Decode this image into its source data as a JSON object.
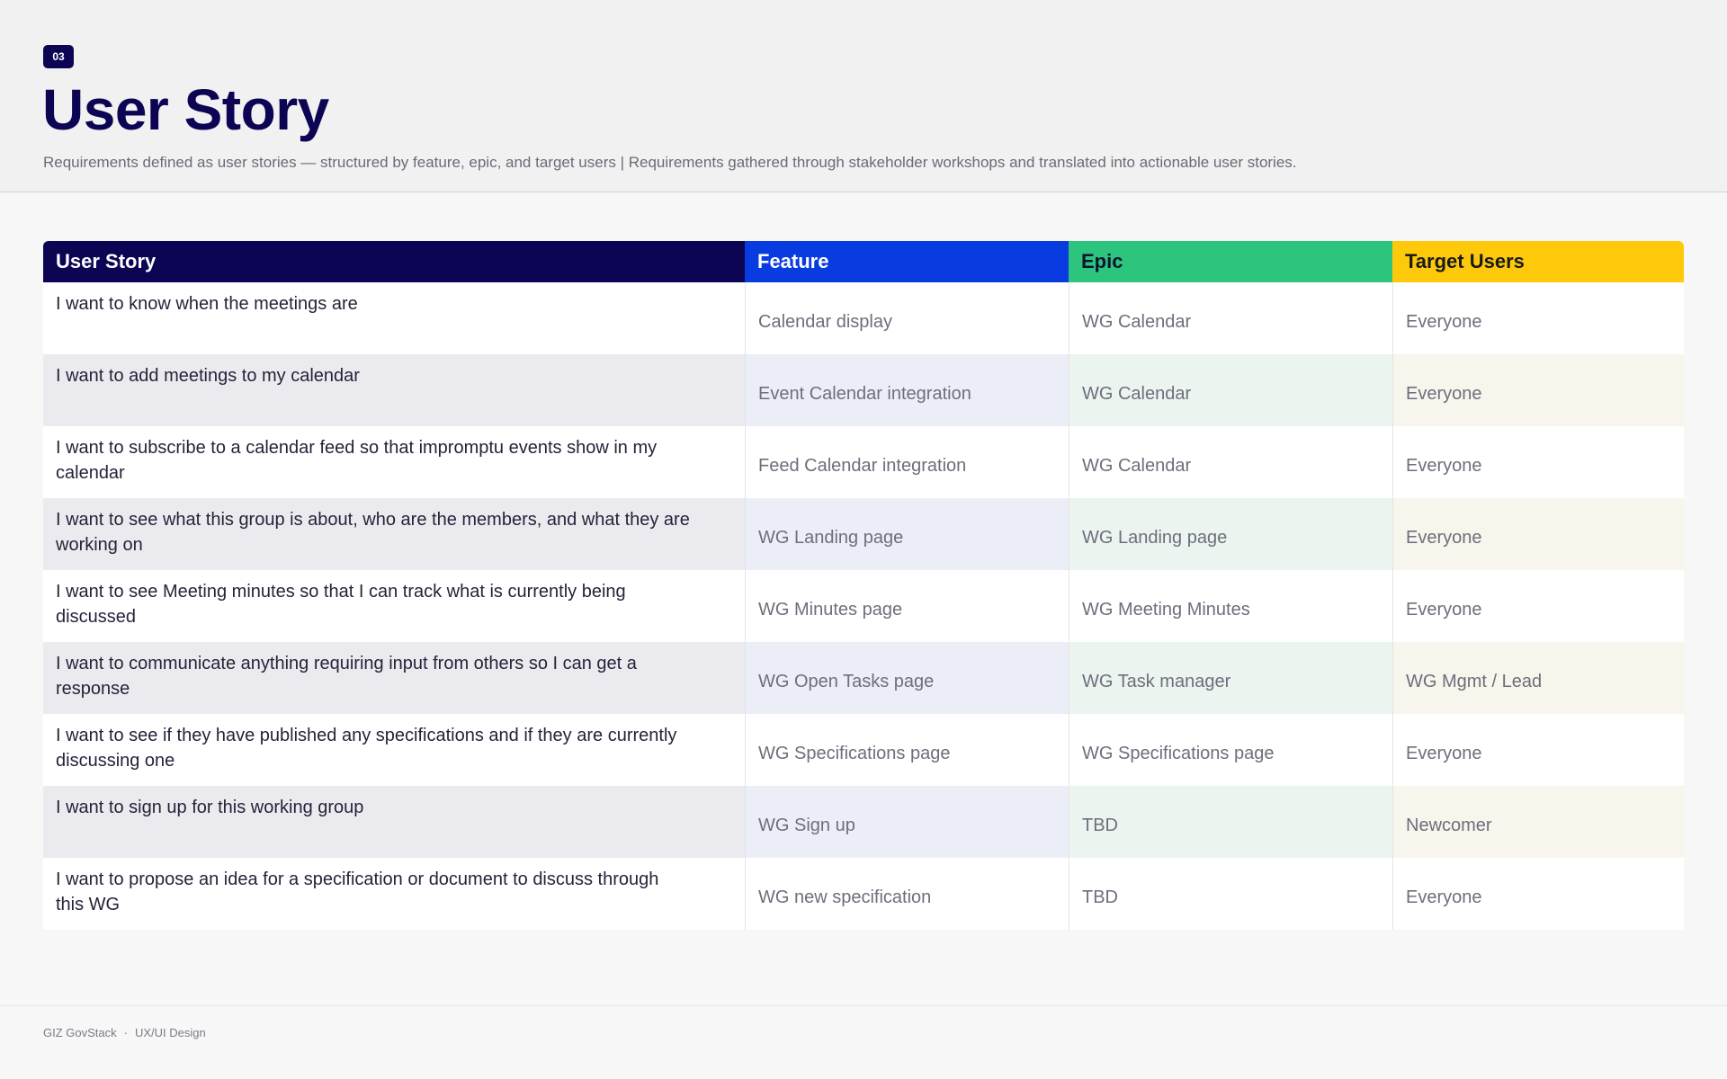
{
  "header": {
    "badge": "03",
    "title": "User Story",
    "subtitle": "Requirements defined as user stories — structured by feature, epic, and target users | Requirements gathered through stakeholder workshops and translated into actionable user stories."
  },
  "table": {
    "columns": [
      "User Story",
      "Feature",
      "Epic",
      "Target Users"
    ],
    "header_colors": [
      "#0b0554",
      "#083ce0",
      "#2dc57e",
      "#fdc90a"
    ],
    "rows": [
      {
        "story": "I want to know when the meetings are",
        "feature": "Calendar display",
        "epic": "WG Calendar",
        "users": "Everyone"
      },
      {
        "story": "I want to add meetings to my calendar",
        "feature": "Event Calendar integration",
        "epic": "WG Calendar",
        "users": "Everyone"
      },
      {
        "story": "I want to subscribe to a calendar feed so that impromptu events show in my calendar",
        "feature": "Feed Calendar integration",
        "epic": "WG Calendar",
        "users": "Everyone"
      },
      {
        "story": "I want to see what this group is about, who are the members, and what they are working on",
        "feature": "WG Landing page",
        "epic": "WG Landing page",
        "users": "Everyone"
      },
      {
        "story": "I want to see Meeting minutes so that I can track what is currently being discussed",
        "feature": "WG Minutes page",
        "epic": "WG Meeting Minutes",
        "users": "Everyone"
      },
      {
        "story": "I want to communicate anything requiring input from others so I can get a response",
        "feature": "WG Open Tasks page",
        "epic": "WG Task manager",
        "users": "WG Mgmt / Lead"
      },
      {
        "story": "I want to see if they have published any specifications and if they are currently discussing one",
        "feature": "WG Specifications page",
        "epic": "WG Specifications page",
        "users": "Everyone"
      },
      {
        "story": "I want to sign up for this working group",
        "feature": "WG Sign up",
        "epic": "TBD",
        "users": "Newcomer"
      },
      {
        "story": "I want to propose an idea for a specification or document to discuss through this WG",
        "feature": "WG new specification",
        "epic": "TBD",
        "users": "Everyone"
      }
    ]
  },
  "footer": {
    "org": "GIZ GovStack",
    "separator": "·",
    "dept": "UX/UI Design"
  }
}
